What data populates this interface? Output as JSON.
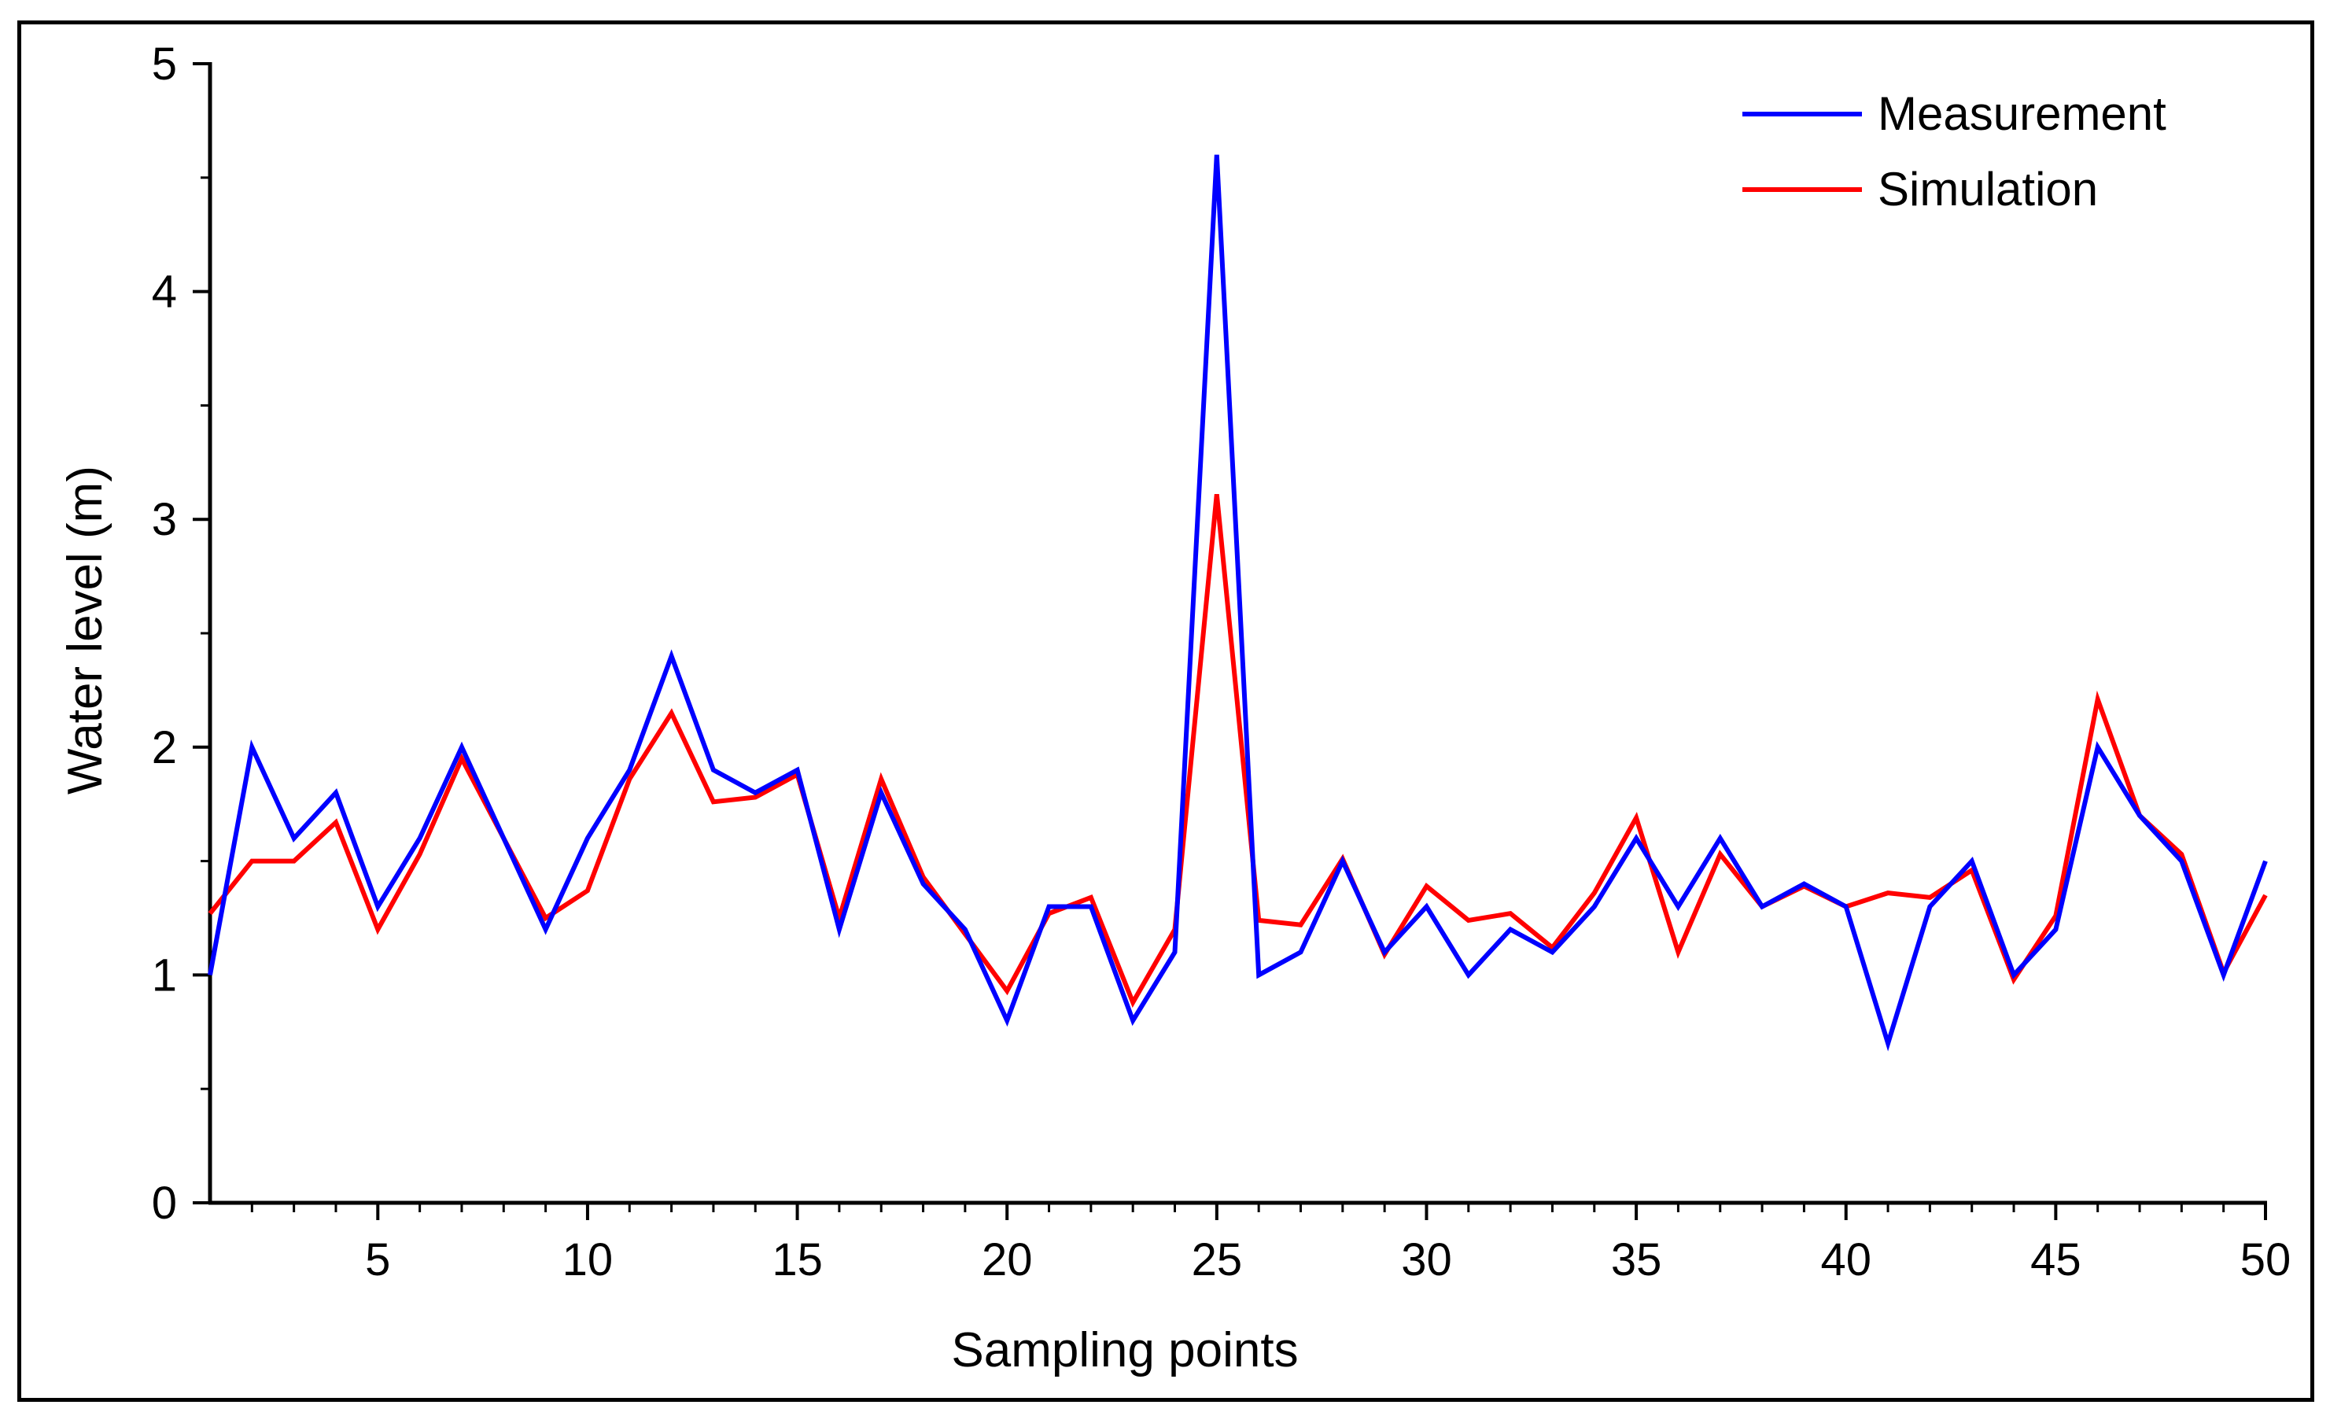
{
  "chart_data": {
    "type": "line",
    "title": "",
    "xlabel": "Sampling points",
    "ylabel": "Water level (m)",
    "xlim": [
      1,
      50
    ],
    "ylim": [
      0,
      5
    ],
    "x_ticks": [
      5,
      10,
      15,
      20,
      25,
      30,
      35,
      40,
      45,
      50
    ],
    "y_ticks": [
      0,
      1,
      2,
      3,
      4,
      5
    ],
    "grid": false,
    "legend_position": "top-right",
    "x": [
      1,
      2,
      3,
      4,
      5,
      6,
      7,
      8,
      9,
      10,
      11,
      12,
      13,
      14,
      15,
      16,
      17,
      18,
      19,
      20,
      21,
      22,
      23,
      24,
      25,
      26,
      27,
      28,
      29,
      30,
      31,
      32,
      33,
      34,
      35,
      36,
      37,
      38,
      39,
      40,
      41,
      42,
      43,
      44,
      45,
      46,
      47,
      48,
      49,
      50
    ],
    "series": [
      {
        "name": "Measurement",
        "color": "#0000ff",
        "values": [
          1.0,
          2.0,
          1.6,
          1.8,
          1.3,
          1.6,
          2.0,
          1.6,
          1.2,
          1.6,
          1.9,
          2.4,
          1.9,
          1.8,
          1.9,
          1.2,
          1.8,
          1.4,
          1.2,
          0.8,
          1.3,
          1.3,
          0.8,
          1.1,
          4.6,
          1.0,
          1.1,
          1.5,
          1.1,
          1.3,
          1.0,
          1.2,
          1.1,
          1.3,
          1.6,
          1.3,
          1.6,
          1.3,
          1.4,
          1.3,
          0.7,
          1.3,
          1.5,
          1.0,
          1.2,
          2.0,
          1.7,
          1.5,
          1.0,
          1.5
        ]
      },
      {
        "name": "Simulation",
        "color": "#ff0000",
        "values": [
          1.27,
          1.5,
          1.5,
          1.67,
          1.2,
          1.53,
          1.95,
          1.6,
          1.25,
          1.37,
          1.86,
          2.15,
          1.76,
          1.78,
          1.88,
          1.25,
          1.86,
          1.43,
          1.18,
          0.93,
          1.27,
          1.34,
          0.88,
          1.2,
          3.11,
          1.24,
          1.22,
          1.51,
          1.09,
          1.39,
          1.24,
          1.27,
          1.12,
          1.36,
          1.69,
          1.1,
          1.53,
          1.3,
          1.39,
          1.3,
          1.36,
          1.34,
          1.46,
          0.98,
          1.26,
          2.21,
          1.7,
          1.53,
          1.01,
          1.35
        ]
      }
    ]
  }
}
